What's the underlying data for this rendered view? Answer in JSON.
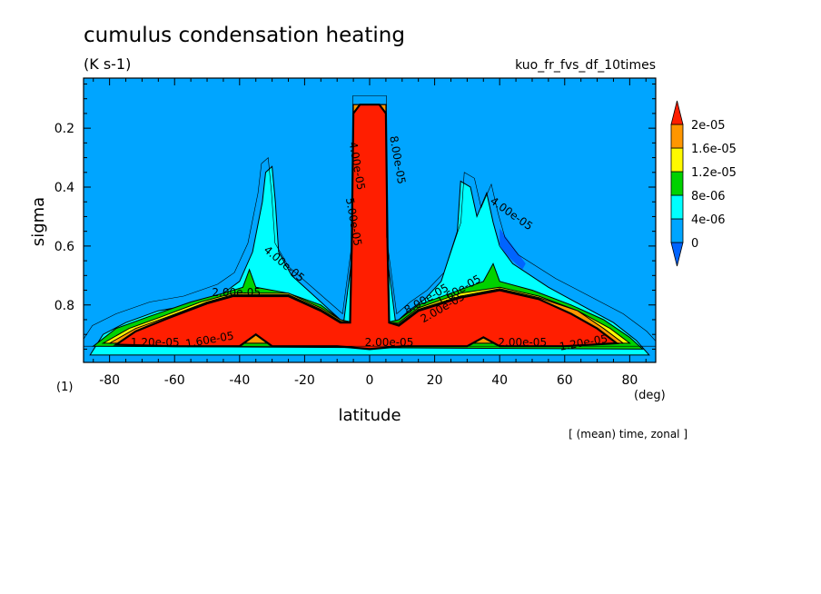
{
  "title": "cumulus condensation heating",
  "units": "(K s-1)",
  "run_name": "kuo_fr_fvs_df_10times",
  "footnote": "[ (mean) time, zonal ]",
  "unit_marker": "(1)",
  "colors": {
    "background": "#00a5ff",
    "level1": "#00ffff",
    "level2": "#00d200",
    "level3": "#fffa00",
    "level4": "#ff9600",
    "level5": "#ff1e00",
    "below": "#0064ff",
    "contour": "#000000"
  },
  "chart_data": {
    "type": "contour",
    "title": "cumulus condensation heating",
    "xlabel": "latitude",
    "x_unit": "(deg)",
    "ylabel": "sigma",
    "xlim": [
      -88,
      88
    ],
    "ylim": [
      0.995,
      0.03
    ],
    "y_inverted": true,
    "x_ticks": [
      -80,
      -60,
      -40,
      -20,
      0,
      20,
      40,
      60,
      80
    ],
    "x_tick_labels": [
      "-80",
      "-60",
      "-40",
      "-20",
      "0",
      "20",
      "40",
      "60",
      "80"
    ],
    "y_ticks": [
      0.2,
      0.4,
      0.6,
      0.8
    ],
    "y_tick_labels": [
      "0.2",
      "0.4",
      "0.6",
      "0.8"
    ],
    "colorbar": {
      "labels": [
        "0",
        "4e-06",
        "8e-06",
        "1.2e-05",
        "1.6e-05",
        "2e-05"
      ],
      "levels": [
        0,
        4e-06,
        8e-06,
        1.2e-05,
        1.6e-05,
        2e-05
      ],
      "colors": [
        "#0064ff",
        "#00a5ff",
        "#00ffff",
        "#00d200",
        "#fffa00",
        "#ff9600",
        "#ff1e00"
      ],
      "extend": "both"
    },
    "regions": [
      {
        "level": "4e-06",
        "color": "#00ffff",
        "polygon": [
          [
            -86,
            0.97
          ],
          [
            -82,
            0.9
          ],
          [
            -75,
            0.86
          ],
          [
            -65,
            0.82
          ],
          [
            -55,
            0.8
          ],
          [
            -45,
            0.76
          ],
          [
            -40,
            0.72
          ],
          [
            -36,
            0.62
          ],
          [
            -33,
            0.45
          ],
          [
            -32,
            0.35
          ],
          [
            -30,
            0.33
          ],
          [
            -29,
            0.45
          ],
          [
            -28,
            0.62
          ],
          [
            -24,
            0.7
          ],
          [
            -18,
            0.76
          ],
          [
            -12,
            0.82
          ],
          [
            -8,
            0.86
          ],
          [
            -5,
            0.6
          ],
          [
            -5,
            0.12
          ],
          [
            5,
            0.12
          ],
          [
            5,
            0.6
          ],
          [
            8,
            0.86
          ],
          [
            12,
            0.82
          ],
          [
            17,
            0.78
          ],
          [
            22,
            0.72
          ],
          [
            27,
            0.55
          ],
          [
            28,
            0.38
          ],
          [
            31,
            0.4
          ],
          [
            33,
            0.5
          ],
          [
            36,
            0.42
          ],
          [
            38,
            0.52
          ],
          [
            40,
            0.6
          ],
          [
            44,
            0.66
          ],
          [
            55,
            0.74
          ],
          [
            65,
            0.8
          ],
          [
            75,
            0.86
          ],
          [
            82,
            0.92
          ],
          [
            86,
            0.97
          ]
        ]
      },
      {
        "level": "8e-06",
        "color": "#00d200",
        "polygon": [
          [
            -85,
            0.94
          ],
          [
            -78,
            0.88
          ],
          [
            -68,
            0.84
          ],
          [
            -55,
            0.79
          ],
          [
            -45,
            0.76
          ],
          [
            -39,
            0.74
          ],
          [
            -37,
            0.68
          ],
          [
            -35,
            0.74
          ],
          [
            -25,
            0.76
          ],
          [
            -15,
            0.8
          ],
          [
            -9,
            0.85
          ],
          [
            -5,
            0.86
          ],
          [
            -5,
            0.12
          ],
          [
            5,
            0.12
          ],
          [
            5,
            0.86
          ],
          [
            9,
            0.85
          ],
          [
            15,
            0.8
          ],
          [
            25,
            0.76
          ],
          [
            35,
            0.72
          ],
          [
            38,
            0.66
          ],
          [
            40,
            0.72
          ],
          [
            50,
            0.75
          ],
          [
            62,
            0.8
          ],
          [
            72,
            0.85
          ],
          [
            80,
            0.91
          ],
          [
            84,
            0.95
          ]
        ]
      },
      {
        "level": "1.2e-05",
        "color": "#fffa00",
        "polygon": [
          [
            -82,
            0.93
          ],
          [
            -74,
            0.88
          ],
          [
            -64,
            0.84
          ],
          [
            -52,
            0.79
          ],
          [
            -42,
            0.76
          ],
          [
            -25,
            0.76
          ],
          [
            -15,
            0.81
          ],
          [
            -9,
            0.85
          ],
          [
            -5,
            0.86
          ],
          [
            -5,
            0.12
          ],
          [
            5,
            0.12
          ],
          [
            5,
            0.86
          ],
          [
            9,
            0.86
          ],
          [
            15,
            0.81
          ],
          [
            28,
            0.76
          ],
          [
            40,
            0.74
          ],
          [
            52,
            0.77
          ],
          [
            64,
            0.82
          ],
          [
            74,
            0.88
          ],
          [
            80,
            0.93
          ]
        ]
      },
      {
        "level": "1.6e-05",
        "color": "#ff9600",
        "polygon": [
          [
            -80,
            0.93
          ],
          [
            -72,
            0.88
          ],
          [
            -62,
            0.84
          ],
          [
            -50,
            0.79
          ],
          [
            -42,
            0.765
          ],
          [
            -25,
            0.765
          ],
          [
            -15,
            0.815
          ],
          [
            -9,
            0.855
          ],
          [
            -5,
            0.86
          ],
          [
            -5,
            0.12
          ],
          [
            5,
            0.12
          ],
          [
            5,
            0.86
          ],
          [
            9,
            0.865
          ],
          [
            15,
            0.815
          ],
          [
            28,
            0.77
          ],
          [
            40,
            0.745
          ],
          [
            52,
            0.775
          ],
          [
            64,
            0.82
          ],
          [
            72,
            0.88
          ],
          [
            78,
            0.93
          ]
        ]
      },
      {
        "level": "2e-05",
        "color": "#ff1e00",
        "polygon": [
          [
            -78,
            0.935
          ],
          [
            -72,
            0.89
          ],
          [
            -62,
            0.845
          ],
          [
            -50,
            0.795
          ],
          [
            -42,
            0.77
          ],
          [
            -25,
            0.77
          ],
          [
            -15,
            0.82
          ],
          [
            -9,
            0.86
          ],
          [
            -6,
            0.86
          ],
          [
            -5.5,
            0.6
          ],
          [
            -5,
            0.15
          ],
          [
            -3,
            0.12
          ],
          [
            3,
            0.12
          ],
          [
            5,
            0.15
          ],
          [
            5.5,
            0.6
          ],
          [
            6,
            0.86
          ],
          [
            9,
            0.87
          ],
          [
            15,
            0.82
          ],
          [
            28,
            0.775
          ],
          [
            40,
            0.75
          ],
          [
            52,
            0.78
          ],
          [
            62,
            0.83
          ],
          [
            70,
            0.88
          ],
          [
            76,
            0.93
          ],
          [
            60,
            0.94
          ],
          [
            40,
            0.94
          ],
          [
            35,
            0.91
          ],
          [
            30,
            0.94
          ],
          [
            10,
            0.94
          ],
          [
            0,
            0.95
          ],
          [
            -10,
            0.94
          ],
          [
            -30,
            0.94
          ],
          [
            -35,
            0.9
          ],
          [
            -40,
            0.94
          ],
          [
            -60,
            0.94
          ]
        ]
      }
    ],
    "dark_sub_region": {
      "color": "#0064ff",
      "polygon": [
        [
          40,
          0.54
        ],
        [
          44,
          0.6
        ],
        [
          48,
          0.66
        ],
        [
          47,
          0.68
        ],
        [
          43,
          0.64
        ],
        [
          40,
          0.6
        ]
      ]
    },
    "contour_labels": [
      {
        "text": "2.00e-05",
        "x": -41,
        "y": 0.77,
        "angle": 0
      },
      {
        "text": "4.00e-05",
        "x": -27,
        "y": 0.67,
        "angle": 40
      },
      {
        "text": "1.60e-05",
        "x": -49,
        "y": 0.93,
        "angle": -10
      },
      {
        "text": "1.20e-05",
        "x": -66,
        "y": 0.94,
        "angle": 0
      },
      {
        "text": "4.00e-05",
        "x": -5,
        "y": 0.33,
        "angle": 80
      },
      {
        "text": "5.00e-05",
        "x": -6,
        "y": 0.52,
        "angle": 80
      },
      {
        "text": "8.00e-05",
        "x": 7.5,
        "y": 0.31,
        "angle": 80
      },
      {
        "text": "2.00e-05",
        "x": 6,
        "y": 0.94,
        "angle": 0
      },
      {
        "text": "8.00e-05",
        "x": 18,
        "y": 0.79,
        "angle": -30
      },
      {
        "text": "2.00e-05",
        "x": 23,
        "y": 0.82,
        "angle": -30
      },
      {
        "text": "1.60e-05",
        "x": 28,
        "y": 0.76,
        "angle": -30
      },
      {
        "text": "4.00e-05",
        "x": 43,
        "y": 0.5,
        "angle": 35
      },
      {
        "text": "2.00e-05",
        "x": 47,
        "y": 0.94,
        "angle": 0
      },
      {
        "text": "1.20e-05",
        "x": 66,
        "y": 0.94,
        "angle": -10
      }
    ]
  }
}
